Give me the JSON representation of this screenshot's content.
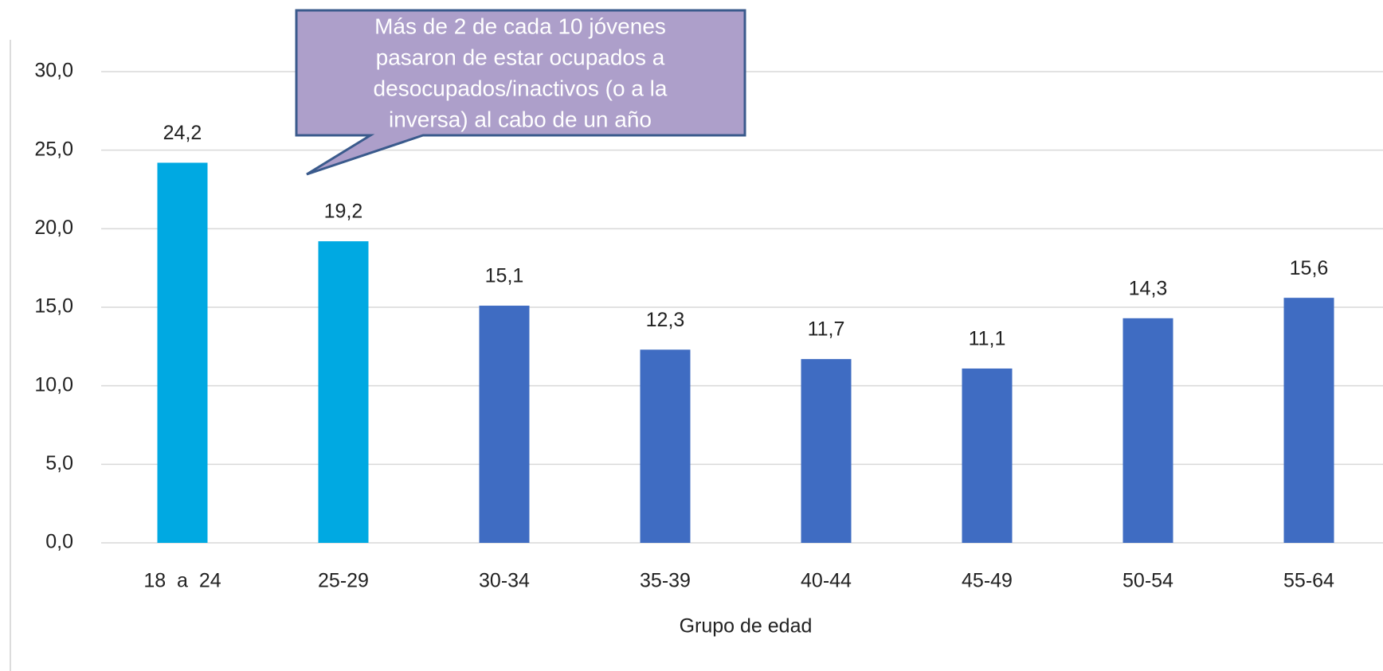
{
  "chart_data": {
    "type": "bar",
    "categories": [
      "18  a  24",
      "25-29",
      "30-34",
      "35-39",
      "40-44",
      "45-49",
      "50-54",
      "55-64"
    ],
    "values": [
      24.2,
      19.2,
      15.1,
      12.3,
      11.7,
      11.1,
      14.3,
      15.6
    ],
    "value_labels": [
      "24,2",
      "19,2",
      "15,1",
      "12,3",
      "11,7",
      "11,1",
      "14,3",
      "15,6"
    ],
    "colors": [
      "#00a9e2",
      "#00a9e2",
      "#3f6cc2",
      "#3f6cc2",
      "#3f6cc2",
      "#3f6cc2",
      "#3f6cc2",
      "#3f6cc2"
    ],
    "xlabel": "Grupo  de  edad",
    "ylim": [
      0,
      30
    ],
    "yticks": [
      {
        "value": 0,
        "label": "0,0"
      },
      {
        "value": 5,
        "label": "5,0"
      },
      {
        "value": 10,
        "label": "10,0"
      },
      {
        "value": 15,
        "label": "15,0"
      },
      {
        "value": 20,
        "label": "20,0"
      },
      {
        "value": 25,
        "label": "25,0"
      },
      {
        "value": 30,
        "label": "30,0"
      }
    ],
    "grid": true,
    "annotation": [
      "Más de 2 de cada 10 jóvenes",
      "pasaron de estar ocupados a",
      "desocupados/inactivos (o a la",
      "inversa) al cabo de un año"
    ]
  }
}
